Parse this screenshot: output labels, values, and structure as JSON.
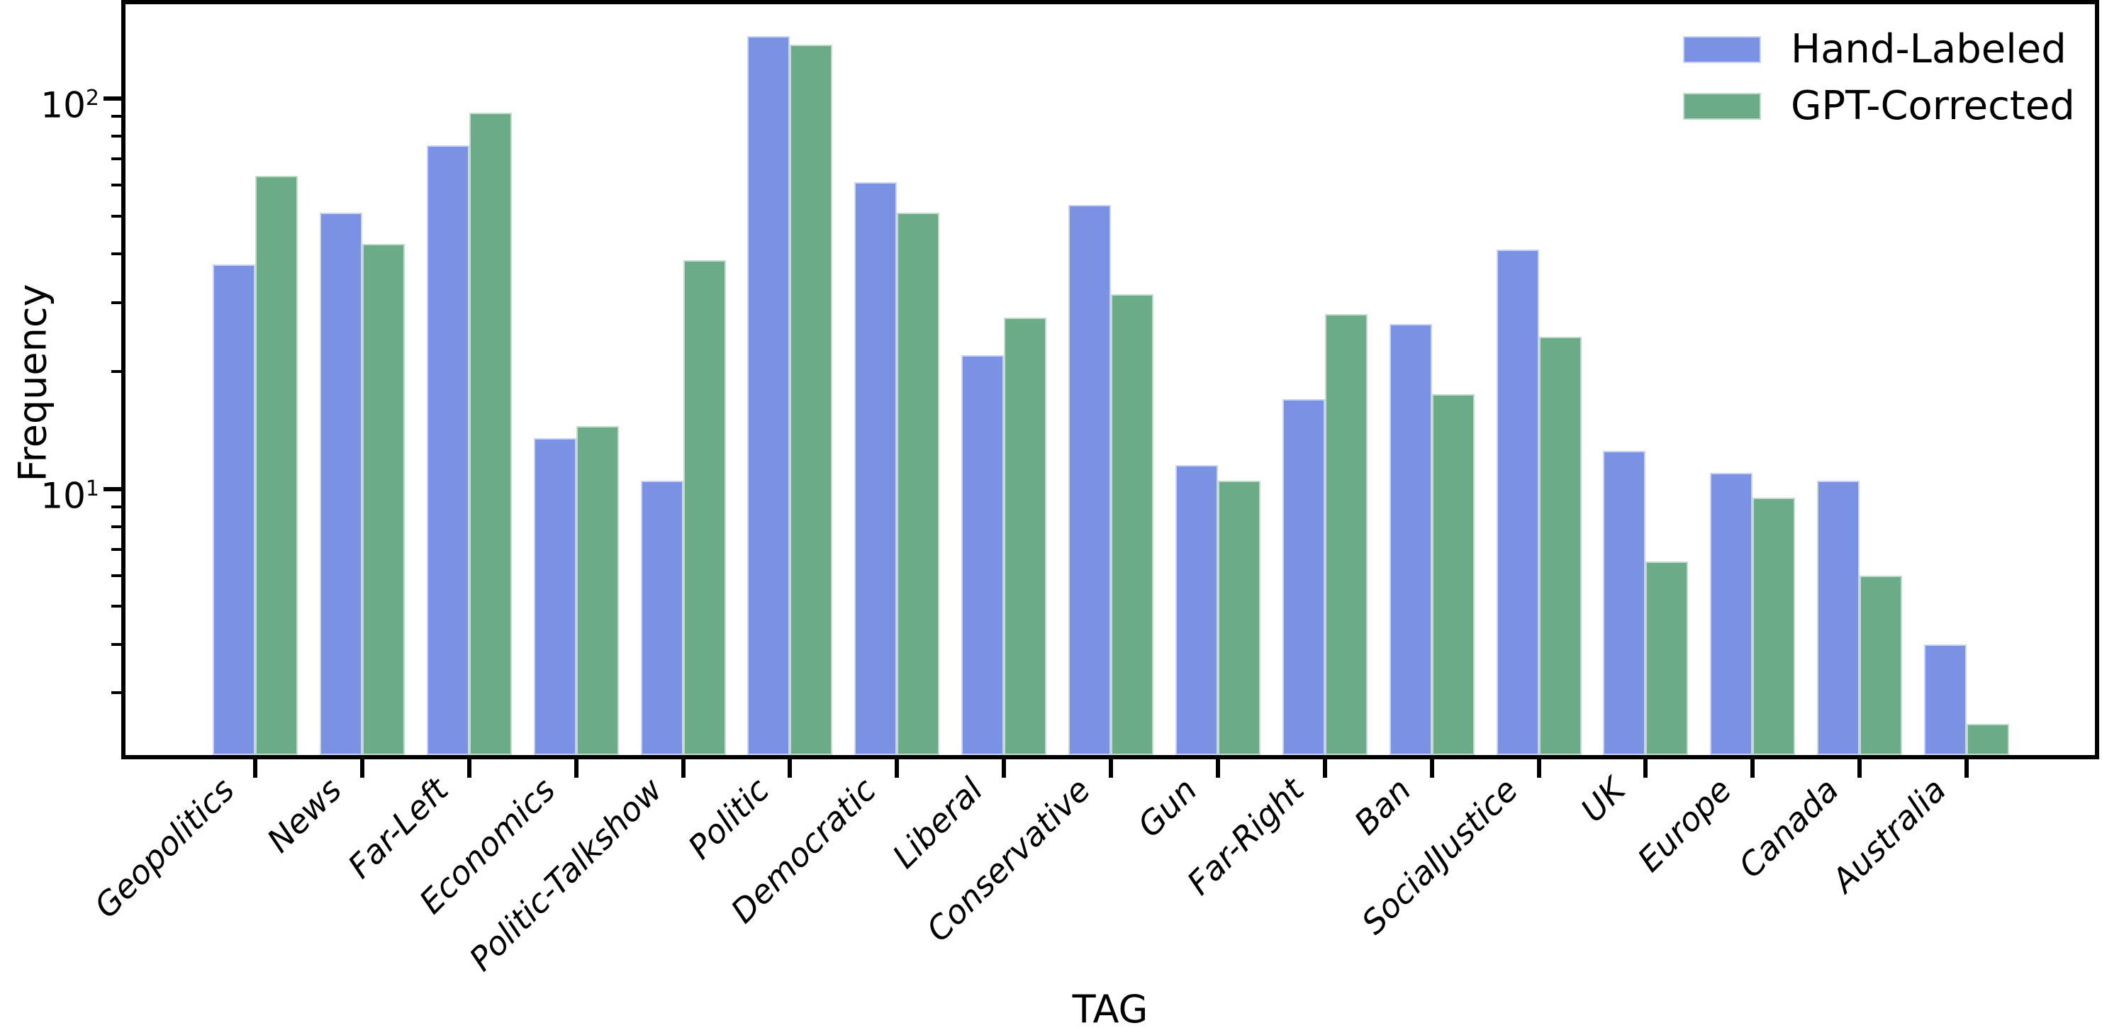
{
  "chart_data": {
    "type": "bar",
    "title": "",
    "xlabel": "TAG",
    "ylabel": "Frequency",
    "y_scale": "log",
    "ylim": [
      2,
      170
    ],
    "grid": false,
    "legend_position": "upper right",
    "categories": [
      "Geopolitics",
      "News",
      "Far-Left",
      "Economics",
      "Politic-Talkshow",
      "Politic",
      "Democratic",
      "Liberal",
      "Conservative",
      "Gun",
      "Far-Right",
      "Ban",
      "SocialJustice",
      "UK",
      "Europe",
      "Canada",
      "Australia"
    ],
    "series": [
      {
        "name": "Hand-Labeled",
        "color": "#7b91e3",
        "edge_color": "#c9d4f4",
        "values": [
          37.5,
          51,
          76,
          13.5,
          10.5,
          144.5,
          61,
          22,
          53.5,
          11.5,
          17,
          26.5,
          41,
          12.5,
          11,
          10.5,
          4
        ]
      },
      {
        "name": "GPT-Corrected",
        "color": "#6bab87",
        "edge_color": "#c2dbcb",
        "values": [
          63.5,
          42.5,
          92,
          14.5,
          38.5,
          137.5,
          51,
          27.5,
          31.5,
          10.5,
          28,
          17.5,
          24.5,
          6.5,
          9.5,
          6,
          2.5
        ]
      }
    ],
    "y_major_ticks": [
      {
        "base": "10",
        "exp": "2",
        "value": 100
      },
      {
        "base": "10",
        "exp": "1",
        "value": 10
      }
    ]
  },
  "axes": {
    "x_label": "TAG",
    "y_label": "Frequency"
  }
}
